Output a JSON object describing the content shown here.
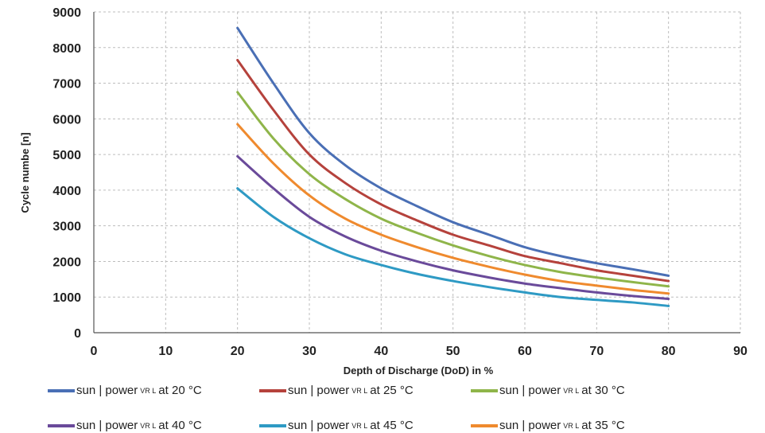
{
  "chart_data": {
    "type": "line",
    "title": "",
    "xlabel": "Depth of Discharge (DoD) in %",
    "ylabel": "Cycle numbe [n]",
    "xlim": [
      0,
      90
    ],
    "ylim": [
      0,
      9000
    ],
    "x_ticks": [
      0,
      10,
      20,
      30,
      40,
      50,
      60,
      70,
      80,
      90
    ],
    "y_ticks": [
      0,
      1000,
      2000,
      3000,
      4000,
      5000,
      6000,
      7000,
      8000,
      9000
    ],
    "grid": true,
    "legend_position": "bottom",
    "x": [
      20,
      25,
      30,
      35,
      40,
      45,
      50,
      55,
      60,
      65,
      70,
      75,
      80
    ],
    "series": [
      {
        "name": "sun | power VR L at 20 °C",
        "color": "#4a6fb5",
        "values": [
          8550,
          7000,
          5600,
          4700,
          4050,
          3550,
          3100,
          2750,
          2400,
          2150,
          1950,
          1780,
          1600
        ]
      },
      {
        "name": "sun | power VR L at 25 °C",
        "color": "#b5423c",
        "values": [
          7650,
          6250,
          5000,
          4200,
          3600,
          3150,
          2750,
          2450,
          2150,
          1950,
          1750,
          1600,
          1450
        ]
      },
      {
        "name": "sun | power VR L at 30 °C",
        "color": "#8fb54a",
        "values": [
          6750,
          5450,
          4450,
          3750,
          3200,
          2800,
          2450,
          2150,
          1900,
          1700,
          1550,
          1420,
          1300
        ]
      },
      {
        "name": "sun | power VR L at 40 °C",
        "color": "#6a4a9a",
        "values": [
          4950,
          4050,
          3250,
          2700,
          2300,
          2000,
          1750,
          1550,
          1380,
          1250,
          1130,
          1030,
          950
        ]
      },
      {
        "name": "sun | power VR L at 45 °C",
        "color": "#2e9ac4",
        "values": [
          4050,
          3250,
          2650,
          2200,
          1900,
          1650,
          1450,
          1280,
          1130,
          1000,
          920,
          850,
          750
        ]
      },
      {
        "name": "sun | power VR L at 35 °C",
        "color": "#ef8a2e",
        "values": [
          5850,
          4750,
          3850,
          3200,
          2750,
          2400,
          2100,
          1850,
          1630,
          1450,
          1320,
          1200,
          1100
        ]
      }
    ]
  },
  "legend": [
    {
      "pre": "sun | power",
      "sub": "VR L",
      "post": "at 20 °C",
      "color": "#4a6fb5"
    },
    {
      "pre": "sun | power",
      "sub": "VR L",
      "post": "at 25 °C",
      "color": "#b5423c"
    },
    {
      "pre": "sun | power",
      "sub": "VR L",
      "post": "at 30 °C",
      "color": "#8fb54a"
    },
    {
      "pre": "sun | power",
      "sub": "VR L",
      "post": "at 40 °C",
      "color": "#6a4a9a"
    },
    {
      "pre": "sun | power",
      "sub": "VR L",
      "post": "at 45 °C",
      "color": "#2e9ac4"
    },
    {
      "pre": "sun | power",
      "sub": "VR L",
      "post": "at 35 °C",
      "color": "#ef8a2e"
    }
  ]
}
